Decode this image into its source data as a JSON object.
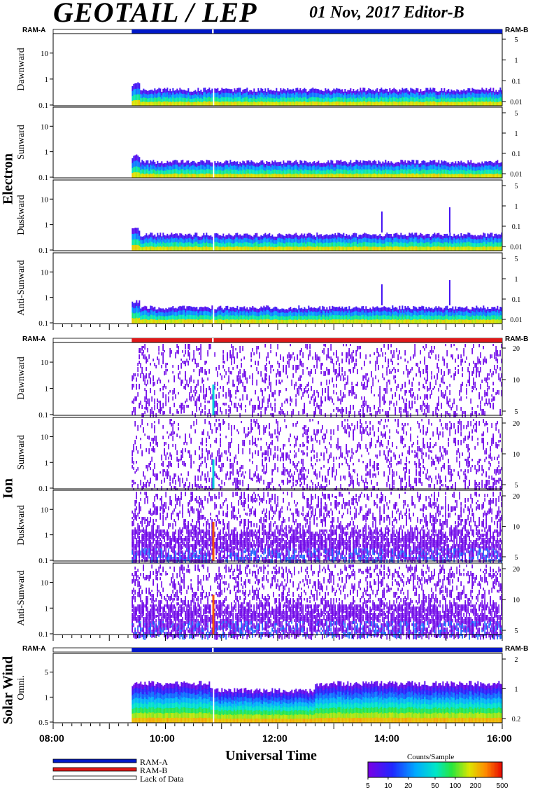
{
  "header": {
    "title": "GEOTAIL / LEP",
    "date_editor": "01 Nov, 2017   Editor-B"
  },
  "groups": [
    "Electron",
    "Ion",
    "Solar Wind"
  ],
  "ram": {
    "left": "RAM-A",
    "right": "RAM-B"
  },
  "panels": [
    {
      "label": "Dawnward",
      "group": "Electron",
      "left_ticks": [
        "10",
        "1",
        "0.1"
      ],
      "right_ticks": [
        "5",
        "1",
        "0.1",
        "0.01"
      ]
    },
    {
      "label": "Sunward",
      "group": "Electron",
      "left_ticks": [
        "10",
        "1",
        "0.1"
      ],
      "right_ticks": [
        "5",
        "1",
        "0.1",
        "0.01"
      ]
    },
    {
      "label": "Duskward",
      "group": "Electron",
      "left_ticks": [
        "10",
        "1",
        "0.1"
      ],
      "right_ticks": [
        "5",
        "1",
        "0.1",
        "0.01"
      ]
    },
    {
      "label": "Anti-Sunward",
      "group": "Electron",
      "left_ticks": [
        "10",
        "1",
        "0.1"
      ],
      "right_ticks": [
        "5",
        "1",
        "0.1",
        "0.01"
      ]
    },
    {
      "label": "Dawnward",
      "group": "Ion",
      "left_ticks": [
        "10",
        "1",
        "0.1"
      ],
      "right_ticks": [
        "20",
        "10",
        "5"
      ]
    },
    {
      "label": "Sunward",
      "group": "Ion",
      "left_ticks": [
        "10",
        "1",
        "0.1"
      ],
      "right_ticks": [
        "20",
        "10",
        "5"
      ]
    },
    {
      "label": "Duskward",
      "group": "Ion",
      "left_ticks": [
        "10",
        "1",
        "0.1"
      ],
      "right_ticks": [
        "20",
        "10",
        "5"
      ]
    },
    {
      "label": "Anti-Sunward",
      "group": "Ion",
      "left_ticks": [
        "10",
        "1",
        "0.1"
      ],
      "right_ticks": [
        "20",
        "10",
        "5"
      ]
    },
    {
      "label": "Omni.",
      "group": "Solar Wind",
      "left_ticks": [
        "5",
        "1",
        "0.5"
      ],
      "right_ticks": [
        "2",
        "1",
        "0.2"
      ]
    }
  ],
  "chart_data": {
    "type": "heatmap",
    "xlabel": "Universal Time",
    "x_ticks": [
      "08:00",
      "10:00",
      "12:00",
      "14:00",
      "16:00"
    ],
    "x_range_hours": [
      8,
      16
    ],
    "data_start_hour": 9.4,
    "data_gap_hours": [
      [
        10.83,
        10.86
      ]
    ],
    "colorbar": {
      "title": "Counts/Sample",
      "ticks": [
        "5",
        "10",
        "20",
        "50",
        "100",
        "200",
        "500"
      ],
      "scale": "log",
      "range": [
        5,
        500
      ]
    },
    "status_legend": [
      {
        "name": "RAM-A",
        "color": "#0018c8"
      },
      {
        "name": "RAM-B",
        "color": "#e01818"
      },
      {
        "name": "Lack of Data",
        "color": "#ffffff"
      }
    ],
    "status_bars": [
      {
        "section": "Electron",
        "mode": "RAM-A"
      },
      {
        "section": "Ion",
        "mode": "RAM-B"
      },
      {
        "section": "Solar Wind",
        "mode": "RAM-A"
      }
    ]
  }
}
